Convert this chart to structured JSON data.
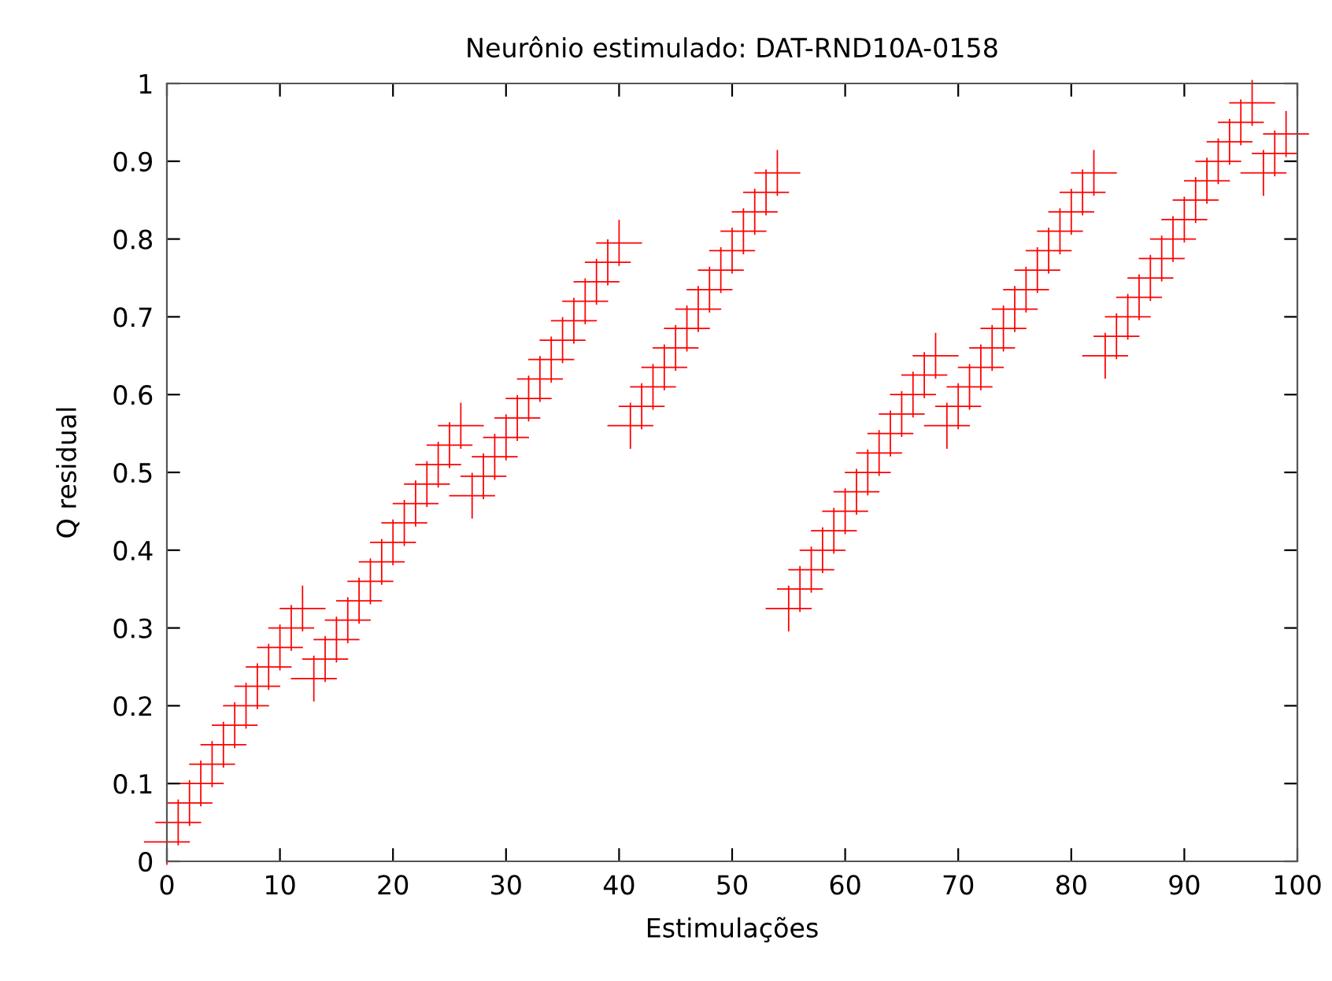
{
  "chart_data": {
    "type": "scatter",
    "title": "Neurônio estimulado: DAT-RND10A-0158",
    "xlabel": "Estimulações",
    "ylabel": "Q residual",
    "x": [
      0,
      1,
      2,
      3,
      4,
      5,
      6,
      7,
      8,
      9,
      10,
      11,
      12,
      13,
      14,
      15,
      16,
      17,
      18,
      19,
      20,
      21,
      22,
      23,
      24,
      25,
      26,
      27,
      28,
      29,
      30,
      31,
      32,
      33,
      34,
      35,
      36,
      37,
      38,
      39,
      40,
      41,
      42,
      43,
      44,
      45,
      46,
      47,
      48,
      49,
      50,
      51,
      52,
      53,
      54,
      55,
      56,
      57,
      58,
      59,
      60,
      61,
      62,
      63,
      64,
      65,
      66,
      67,
      68,
      69,
      70,
      71,
      72,
      73,
      74,
      75,
      76,
      77,
      78,
      79,
      80,
      81,
      82,
      83,
      84,
      85,
      86,
      87,
      88,
      89,
      90,
      91,
      92,
      93,
      94,
      95,
      96,
      97,
      98,
      99
    ],
    "series": [
      {
        "color": "#ff0000",
        "values": [
          0.025,
          0.05,
          0.075,
          0.1,
          0.125,
          0.15,
          0.175,
          0.2,
          0.225,
          0.25,
          0.275,
          0.3,
          0.325,
          0.235,
          0.26,
          0.285,
          0.31,
          0.335,
          0.36,
          0.385,
          0.41,
          0.435,
          0.46,
          0.485,
          0.51,
          0.535,
          0.56,
          0.47,
          0.495,
          0.52,
          0.545,
          0.57,
          0.595,
          0.62,
          0.645,
          0.67,
          0.695,
          0.72,
          0.745,
          0.77,
          0.795,
          0.56,
          0.585,
          0.61,
          0.635,
          0.66,
          0.685,
          0.71,
          0.735,
          0.76,
          0.785,
          0.81,
          0.835,
          0.86,
          0.885,
          0.325,
          0.35,
          0.375,
          0.4,
          0.425,
          0.45,
          0.475,
          0.5,
          0.525,
          0.55,
          0.575,
          0.6,
          0.625,
          0.65,
          0.56,
          0.585,
          0.61,
          0.635,
          0.66,
          0.685,
          0.71,
          0.735,
          0.76,
          0.785,
          0.81,
          0.835,
          0.86,
          0.885,
          0.65,
          0.675,
          0.7,
          0.725,
          0.75,
          0.775,
          0.8,
          0.825,
          0.85,
          0.875,
          0.9,
          0.925,
          0.95,
          0.975,
          0.885,
          0.91,
          0.935
        ]
      }
    ],
    "xlim": [
      0,
      100
    ],
    "ylim": [
      0,
      1
    ],
    "xticks": [
      0,
      10,
      20,
      30,
      40,
      50,
      60,
      70,
      80,
      90,
      100
    ],
    "yticks": [
      0,
      0.1,
      0.2,
      0.3,
      0.4,
      0.5,
      0.6,
      0.7,
      0.8,
      0.9,
      1
    ],
    "marker": "cross",
    "grid": false
  }
}
